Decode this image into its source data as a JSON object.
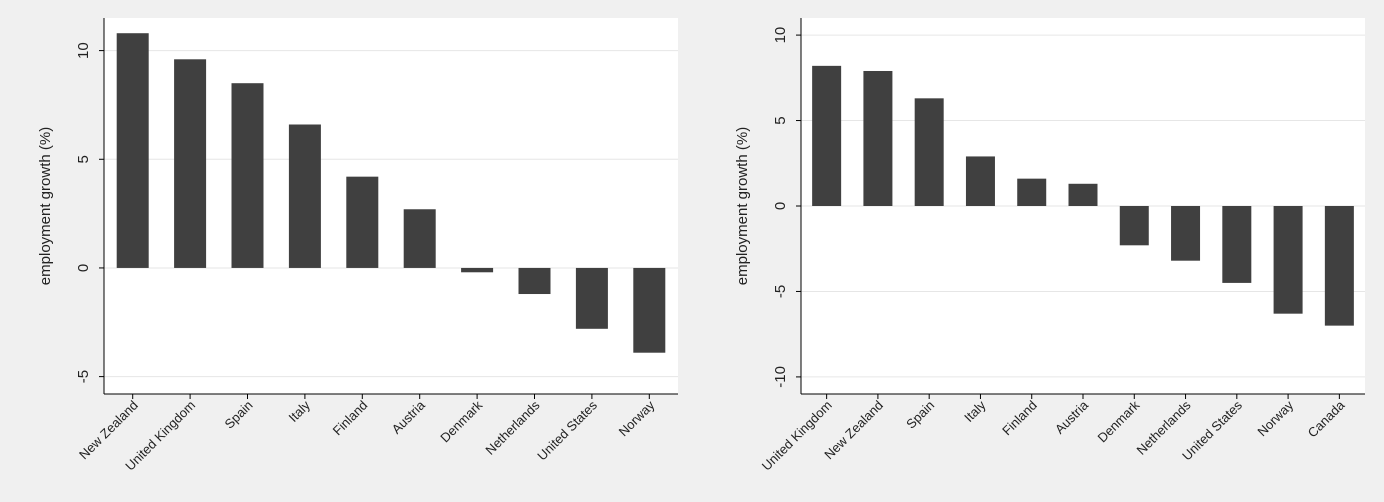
{
  "colors": {
    "bar": "#404040",
    "plot_background": "#ffffff",
    "page_background": "#f0f0f0",
    "gridline": "#e6e6e6",
    "axis": "#000000"
  },
  "chart_data": [
    {
      "type": "bar",
      "title": "",
      "xlabel": "",
      "ylabel": "employment growth (%)",
      "categories": [
        "New Zealand",
        "United Kingdom",
        "Spain",
        "Italy",
        "Finland",
        "Austria",
        "Denmark",
        "Netherlands",
        "United States",
        "Norway"
      ],
      "values": [
        10.8,
        9.6,
        8.5,
        6.6,
        4.2,
        2.7,
        -0.2,
        -1.2,
        -2.8,
        -3.9
      ],
      "ylim": [
        -5.8,
        11.5
      ],
      "yticks": [
        -5,
        0,
        5,
        10
      ],
      "grid": true,
      "legend": "none"
    },
    {
      "type": "bar",
      "title": "",
      "xlabel": "",
      "ylabel": "employment growth (%)",
      "categories": [
        "United Kingdom",
        "New Zealand",
        "Spain",
        "Italy",
        "Finland",
        "Austria",
        "Denmark",
        "Netherlands",
        "United States",
        "Norway",
        "Canada"
      ],
      "values": [
        8.2,
        7.9,
        6.3,
        2.9,
        1.6,
        1.3,
        -2.3,
        -3.2,
        -4.5,
        -6.3,
        -7.0
      ],
      "ylim": [
        -11,
        11
      ],
      "yticks": [
        -10,
        -5,
        0,
        5,
        10
      ],
      "grid": true,
      "legend": "none"
    }
  ]
}
